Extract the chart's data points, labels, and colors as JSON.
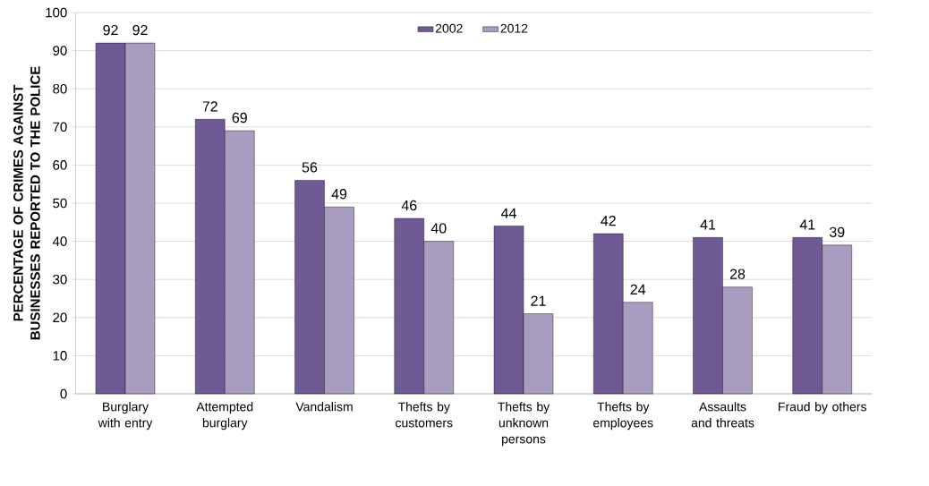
{
  "chart_data": {
    "type": "bar",
    "ylabel": "PERCENTAGE OF CRIMES AGAINST BUSINESSES REPORTED TO THE POLICE",
    "categories": [
      "Burglary with entry",
      "Attempted burglary",
      "Vandalism",
      "Thefts by customers",
      "Thefts by unknown persons",
      "Thefts by employees",
      "Assaults and threats",
      "Fraud by others"
    ],
    "series": [
      {
        "name": "2002",
        "color": "#705a96",
        "values": [
          92,
          72,
          56,
          46,
          44,
          42,
          41,
          41
        ]
      },
      {
        "name": "2012",
        "color": "#a99cc1",
        "values": [
          92,
          69,
          49,
          40,
          21,
          24,
          28,
          39
        ]
      }
    ],
    "ylim": [
      0,
      100
    ],
    "yticks": [
      0,
      10,
      20,
      30,
      40,
      50,
      60,
      70,
      80,
      90,
      100
    ],
    "grid": "y",
    "legend": "top",
    "data_labels": true
  }
}
